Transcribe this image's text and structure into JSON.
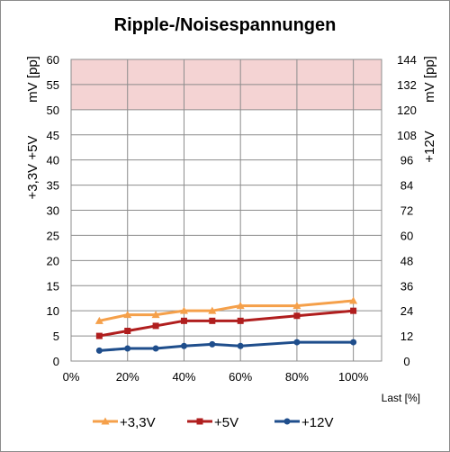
{
  "chart_data": {
    "type": "line",
    "title": "Ripple-/Noisespannungen",
    "x": [
      10,
      20,
      30,
      40,
      50,
      60,
      80,
      100
    ],
    "x_ticks": [
      "0%",
      "20%",
      "40%",
      "60%",
      "80%",
      "100%"
    ],
    "x_tick_values": [
      0,
      20,
      40,
      60,
      80,
      100
    ],
    "xlim": [
      0,
      110
    ],
    "xlabel": "Last [%]",
    "ylim": [
      0,
      60
    ],
    "y_ticks": [
      0,
      5,
      10,
      15,
      20,
      25,
      30,
      35,
      40,
      45,
      50,
      55,
      60
    ],
    "ylabel_left_unit": "mV [pp]",
    "ylabel_left": "+3,3V  +5V",
    "y2lim": [
      0,
      144
    ],
    "y2_ticks": [
      0,
      12,
      24,
      36,
      48,
      60,
      72,
      84,
      96,
      108,
      120,
      132,
      144
    ],
    "ylabel_right_unit": "mV [pp]",
    "ylabel_right": "+12V",
    "limit_band": {
      "from": 50,
      "to": 60,
      "color": "#f4d3d3"
    },
    "grid": true,
    "legend": "bottom",
    "series": [
      {
        "name": "+3,3V",
        "axis": "left",
        "color": "#f5a04a",
        "marker": "triangle",
        "values": [
          8,
          9.2,
          9.2,
          10,
          10,
          11,
          11,
          12
        ]
      },
      {
        "name": "+5V",
        "axis": "left",
        "color": "#b01e1e",
        "marker": "square",
        "values": [
          5,
          6,
          7,
          8,
          8,
          8,
          9,
          10
        ]
      },
      {
        "name": "+12V",
        "axis": "right",
        "color": "#1f4e8c",
        "marker": "circle",
        "values": [
          5,
          6,
          6,
          7.2,
          8,
          7.2,
          9,
          9
        ]
      }
    ]
  }
}
